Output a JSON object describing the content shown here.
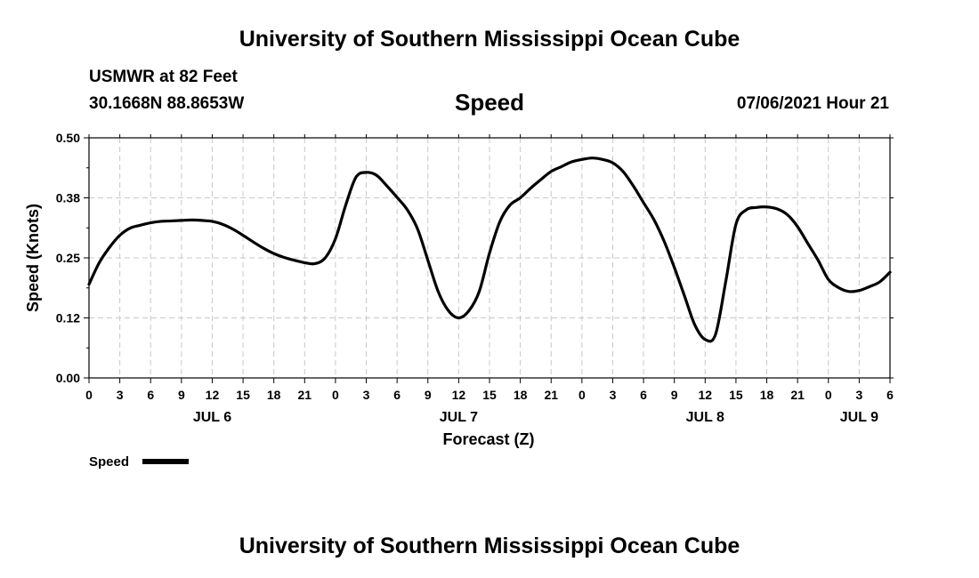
{
  "page": {
    "top_title": "University of Southern Mississippi Ocean Cube",
    "bottom_title": "University of Southern Mississippi Ocean Cube",
    "station": "USMWR at 82 Feet",
    "coords": "30.1668N  88.8653W",
    "chart_title": "Speed",
    "stamp": "07/06/2021 Hour 21"
  },
  "colors": {
    "line": "#000000",
    "grid": "#c8c8c8",
    "background": "#ffffff"
  },
  "chart_data": {
    "type": "line",
    "title": "Speed",
    "xlabel": "Forecast (Z)",
    "ylabel": "Speed (Knots)",
    "ylim": [
      0,
      0.5
    ],
    "xlim_hours": [
      0,
      78
    ],
    "y_ticks": [
      "0.00",
      "0.12",
      "0.25",
      "0.38",
      "0.50"
    ],
    "x_tick_labels": [
      "0",
      "3",
      "6",
      "9",
      "12",
      "15",
      "18",
      "21",
      "0",
      "3",
      "6",
      "9",
      "12",
      "15",
      "18",
      "21",
      "0",
      "3",
      "6",
      "9",
      "12",
      "15",
      "18",
      "21",
      "0",
      "3",
      "6"
    ],
    "day_labels": [
      {
        "label": "JUL 6",
        "hour": 12
      },
      {
        "label": "JUL 7",
        "hour": 36
      },
      {
        "label": "JUL 8",
        "hour": 60
      },
      {
        "label": "JUL 9",
        "hour": 75
      }
    ],
    "grid": true,
    "legend": {
      "position": "bottom-left",
      "entries": [
        "Speed"
      ]
    },
    "series": [
      {
        "name": "Speed",
        "x": [
          0,
          1,
          2,
          3,
          4,
          5,
          6,
          7,
          8,
          9,
          10,
          11,
          12,
          13,
          14,
          15,
          16,
          17,
          18,
          19,
          20,
          21,
          22,
          23,
          24,
          25,
          26,
          27,
          28,
          29,
          30,
          31,
          32,
          33,
          34,
          35,
          36,
          37,
          38,
          39,
          40,
          41,
          42,
          43,
          44,
          45,
          46,
          47,
          48,
          49,
          50,
          51,
          52,
          53,
          54,
          55,
          56,
          57,
          58,
          59,
          60,
          61,
          62,
          63,
          64,
          65,
          66,
          67,
          68,
          69,
          70,
          71,
          72,
          73,
          74,
          75,
          76,
          77,
          78
        ],
        "y": [
          0.195,
          0.24,
          0.272,
          0.297,
          0.312,
          0.318,
          0.323,
          0.326,
          0.327,
          0.328,
          0.329,
          0.328,
          0.326,
          0.32,
          0.31,
          0.297,
          0.283,
          0.27,
          0.259,
          0.251,
          0.245,
          0.24,
          0.238,
          0.25,
          0.29,
          0.36,
          0.418,
          0.428,
          0.422,
          0.4,
          0.376,
          0.35,
          0.31,
          0.245,
          0.18,
          0.14,
          0.125,
          0.14,
          0.18,
          0.26,
          0.325,
          0.36,
          0.375,
          0.395,
          0.413,
          0.43,
          0.44,
          0.45,
          0.455,
          0.458,
          0.455,
          0.448,
          0.43,
          0.4,
          0.365,
          0.33,
          0.285,
          0.23,
          0.17,
          0.11,
          0.08,
          0.09,
          0.2,
          0.32,
          0.35,
          0.355,
          0.356,
          0.352,
          0.34,
          0.315,
          0.28,
          0.245,
          0.205,
          0.188,
          0.18,
          0.182,
          0.19,
          0.2,
          0.22
        ]
      }
    ]
  }
}
